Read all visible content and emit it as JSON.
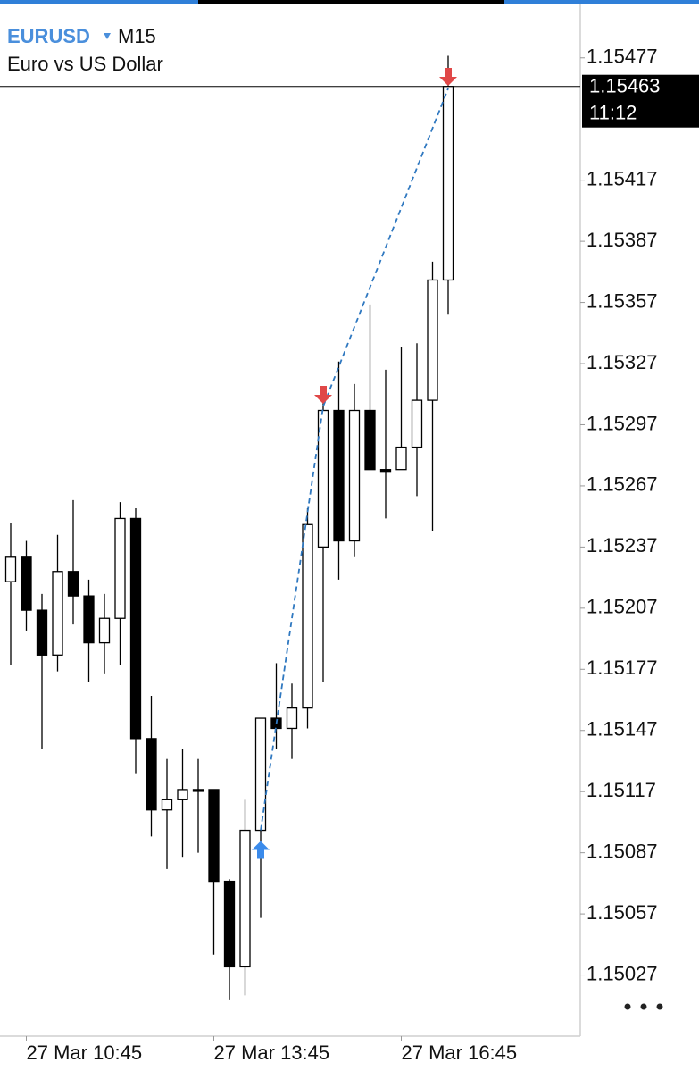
{
  "chart_data": {
    "type": "candlestick",
    "symbol": "EURUSD",
    "timeframe": "M15",
    "title": "Euro vs US Dollar",
    "categories": [
      null,
      "27 Mar 10:45",
      null,
      null,
      null,
      null,
      null,
      null,
      null,
      null,
      null,
      null,
      null,
      "27 Mar 13:45",
      null,
      null,
      null,
      null,
      null,
      null,
      null,
      null,
      null,
      null,
      null,
      "27 Mar 16:45",
      null,
      null,
      null
    ],
    "open": [
      1.1522,
      1.15232,
      1.15206,
      1.15184,
      1.15225,
      1.15213,
      1.1519,
      1.15202,
      1.15251,
      1.15143,
      1.15108,
      1.15113,
      1.15118,
      1.15118,
      1.15073,
      1.15031,
      1.15098,
      1.15153,
      1.15148,
      1.15158,
      1.15237,
      1.15304,
      1.1524,
      1.15304,
      1.15275,
      1.15275,
      1.15286,
      1.15309,
      1.15368
    ],
    "high": [
      1.15249,
      1.1524,
      1.15214,
      1.15243,
      1.1526,
      1.15221,
      1.15214,
      1.15259,
      1.15256,
      1.15164,
      1.15133,
      1.15138,
      1.15133,
      1.15118,
      1.15074,
      1.15113,
      1.15153,
      1.1518,
      1.1517,
      1.15256,
      1.15308,
      1.15328,
      1.15317,
      1.15356,
      1.15324,
      1.15335,
      1.15337,
      1.15377,
      1.15478
    ],
    "low": [
      1.15179,
      1.15196,
      1.15138,
      1.15176,
      1.15199,
      1.15171,
      1.15175,
      1.15179,
      1.15126,
      1.15095,
      1.15079,
      1.15085,
      1.15087,
      1.15037,
      1.15015,
      1.15017,
      1.15055,
      1.15138,
      1.15133,
      1.15148,
      1.15171,
      1.15221,
      1.15232,
      1.15275,
      1.15251,
      1.15275,
      1.15262,
      1.15245,
      1.15351
    ],
    "close": [
      1.15232,
      1.15206,
      1.15184,
      1.15225,
      1.15213,
      1.1519,
      1.15202,
      1.15251,
      1.15143,
      1.15108,
      1.15113,
      1.15118,
      1.15118,
      1.15073,
      1.15031,
      1.15098,
      1.15153,
      1.15148,
      1.15158,
      1.15248,
      1.15304,
      1.1524,
      1.15304,
      1.15275,
      1.15275,
      1.15286,
      1.15309,
      1.15368,
      1.15463
    ],
    "up_color": "#ffffff",
    "down_color": "#000000",
    "ylim": [
      1.14997,
      1.15501
    ],
    "yticks": [
      1.15477,
      1.15417,
      1.15387,
      1.15357,
      1.15327,
      1.15297,
      1.15267,
      1.15237,
      1.15207,
      1.15177,
      1.15147,
      1.15117,
      1.15087,
      1.15057,
      1.15027
    ],
    "current_price": 1.15463,
    "timer": "11:12",
    "trades": [
      {
        "direction": "buy",
        "index": 16,
        "price": 1.15098
      },
      {
        "direction": "sell",
        "index": 20,
        "price": 1.15306
      },
      {
        "direction": "sell",
        "index": 28,
        "price": 1.15462
      }
    ],
    "buy_color": "#3b8beb",
    "sell_color": "#e04848",
    "trade_line_color": "#2f78c0"
  }
}
